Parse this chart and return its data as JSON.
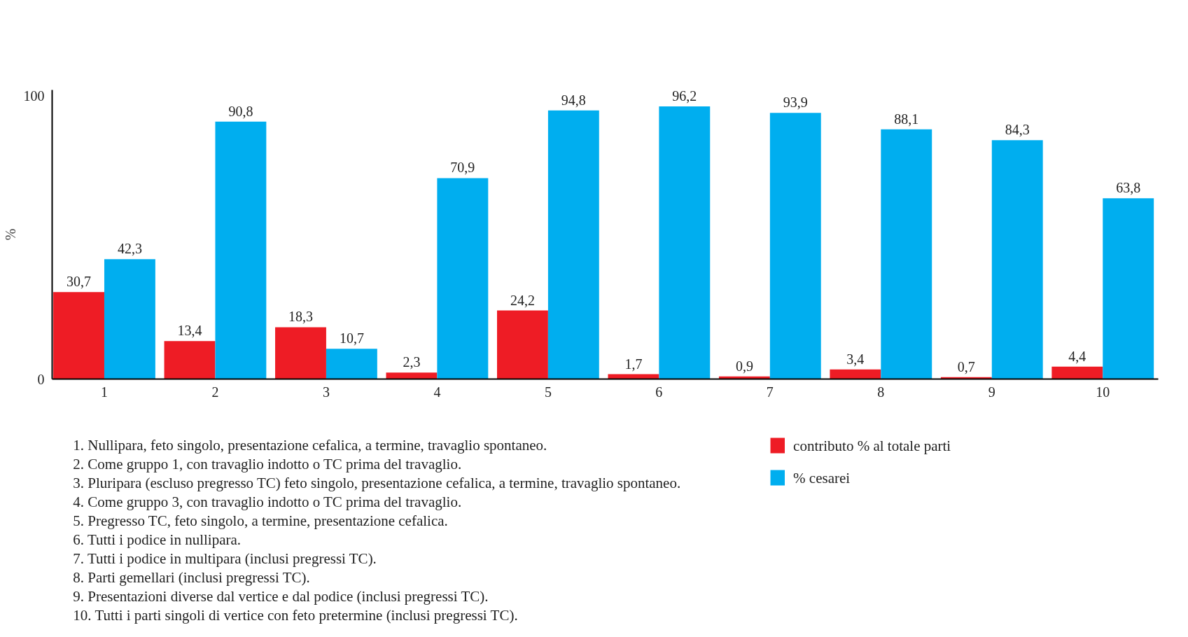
{
  "chart_data": {
    "type": "bar",
    "ylabel": "%",
    "categories": [
      "1",
      "2",
      "3",
      "4",
      "5",
      "6",
      "7",
      "8",
      "9",
      "10"
    ],
    "series": [
      {
        "name": "contributo % al totale parti",
        "color": "#ee1c25",
        "values": [
          30.7,
          13.4,
          18.3,
          2.3,
          24.2,
          1.7,
          0.9,
          3.4,
          0.7,
          4.4
        ],
        "value_labels": [
          "30,7",
          "13,4",
          "18,3",
          "2,3",
          "24,2",
          "1,7",
          "0,9",
          "3,4",
          "0,7",
          "4,4"
        ]
      },
      {
        "name": "% cesarei",
        "color": "#00aeef",
        "values": [
          42.3,
          90.8,
          10.7,
          70.9,
          94.8,
          96.2,
          93.9,
          88.1,
          84.3,
          63.8
        ],
        "value_labels": [
          "42,3",
          "90,8",
          "10,7",
          "70,9",
          "94,8",
          "96,2",
          "93,9",
          "88,1",
          "84,3",
          "63,8"
        ]
      }
    ],
    "ylim": [
      0,
      102
    ],
    "yticks": [
      0,
      100
    ],
    "grid": false,
    "legend": "bottom right",
    "annotations": [
      "1.  Nullipara, feto singolo, presentazione cefalica, a termine, travaglio spontaneo.",
      "2.  Come gruppo 1, con travaglio indotto o TC prima del travaglio.",
      "3.  Pluripara (escluso pregresso TC) feto singolo, presentazione cefalica, a termine, travaglio spontaneo.",
      "4.  Come gruppo 3, con travaglio indotto o TC prima del travaglio.",
      "5.  Pregresso TC, feto singolo, a termine, presentazione cefalica.",
      "6.  Tutti i podice in nullipara.",
      "7.  Tutti i podice in multipara (inclusi pregressi TC).",
      "8.  Parti gemellari (inclusi pregressi TC).",
      "9.  Presentazioni diverse dal vertice e dal podice (inclusi pregressi TC).",
      "10.  Tutti i parti singoli di vertice con feto pretermine (inclusi pregressi TC)."
    ]
  }
}
